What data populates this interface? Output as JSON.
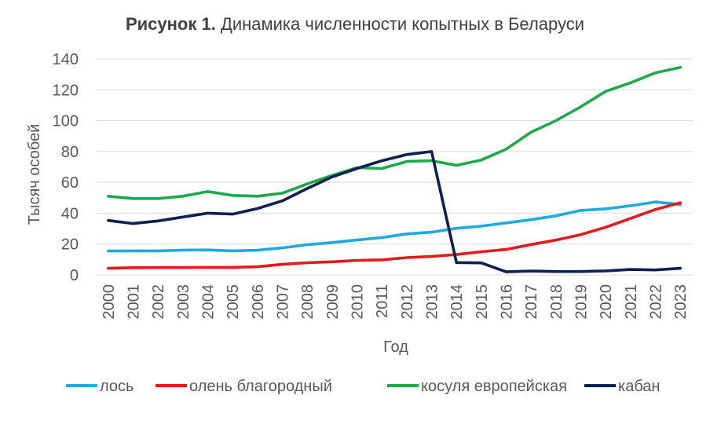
{
  "chart_data": {
    "type": "line",
    "title_bold": "Рисунок 1.",
    "title": "Динамика численности копытных в Беларуси",
    "xlabel": "Год",
    "ylabel": "Тысяч особей",
    "ylim": [
      0,
      140
    ],
    "yticks": [
      0,
      20,
      40,
      60,
      80,
      100,
      120,
      140
    ],
    "grid": true,
    "legend_position": "bottom",
    "categories": [
      "2000",
      "2001",
      "2002",
      "2003",
      "2004",
      "2005",
      "2006",
      "2007",
      "2008",
      "2009",
      "2010",
      "2011",
      "2012",
      "2013",
      "2014",
      "2015",
      "2016",
      "2017",
      "2018",
      "2019",
      "2020",
      "2021",
      "2022",
      "2023"
    ],
    "series": [
      {
        "name": "лось",
        "color": "#1fa9dc",
        "values": [
          15.5,
          15.6,
          15.6,
          16.1,
          16.2,
          15.6,
          16.0,
          17.5,
          19.6,
          21.0,
          22.6,
          24.2,
          26.6,
          27.7,
          30.2,
          31.6,
          33.7,
          35.8,
          38.3,
          41.8,
          42.8,
          44.8,
          47.3,
          45.6
        ]
      },
      {
        "name": "олень благородный",
        "color": "#e31a1c",
        "values": [
          4.3,
          4.7,
          4.8,
          4.8,
          4.9,
          4.9,
          5.3,
          6.8,
          7.9,
          8.5,
          9.4,
          9.8,
          11.2,
          12.0,
          13.2,
          15.0,
          16.5,
          19.7,
          22.6,
          26.1,
          30.9,
          36.6,
          42.4,
          46.8
        ]
      },
      {
        "name": "косуля европейская",
        "color": "#1ea84a",
        "values": [
          51.0,
          49.5,
          49.5,
          51.0,
          54.0,
          51.5,
          51.0,
          53.0,
          59.0,
          64.5,
          69.5,
          69.0,
          73.5,
          74.0,
          71.0,
          74.5,
          81.5,
          92.5,
          100.0,
          109.0,
          119.0,
          124.5,
          131.0,
          134.5
        ]
      },
      {
        "name": "кабан",
        "color": "#0d2051",
        "values": [
          35.3,
          33.3,
          35.0,
          37.5,
          40.0,
          39.4,
          43.0,
          48.0,
          56.0,
          63.5,
          69.0,
          74.0,
          78.0,
          80.0,
          8.0,
          7.8,
          2.0,
          2.5,
          2.2,
          2.2,
          2.6,
          3.5,
          3.2,
          4.3
        ]
      }
    ]
  }
}
